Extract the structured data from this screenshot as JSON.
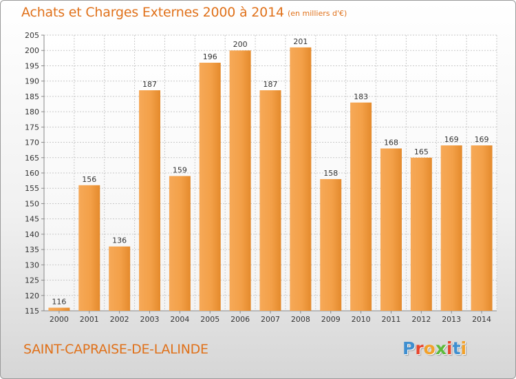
{
  "header": {
    "title": "Achats et Charges Externes 2000 à 2014",
    "unit_note": "(en milliers d'€)"
  },
  "footer": {
    "location": "SAINT-CAPRAISE-DE-LALINDE",
    "logo": {
      "letters": [
        "P",
        "r",
        "o",
        "x",
        "i",
        "t",
        "i"
      ],
      "colors": [
        "#3f8fd0",
        "#e8452c",
        "#f2a12a",
        "#5dbb3a",
        "#e8452c",
        "#3f8fd0",
        "#f2a12a"
      ]
    }
  },
  "colors": {
    "bar_light": "#f6a958",
    "bar_dark": "#e48a2c",
    "accent": "#e0711a",
    "grid": "#c8c8c8",
    "axis_text": "#333333"
  },
  "chart_data": {
    "type": "bar",
    "categories": [
      "2000",
      "2001",
      "2002",
      "2003",
      "2004",
      "2005",
      "2006",
      "2007",
      "2008",
      "2009",
      "2010",
      "2011",
      "2012",
      "2013",
      "2014"
    ],
    "values": [
      116,
      156,
      136,
      187,
      159,
      196,
      200,
      187,
      201,
      158,
      183,
      168,
      165,
      169,
      169
    ],
    "data_labels": [
      "116",
      "156",
      "136",
      "187",
      "159",
      "196",
      "200",
      "187",
      "201",
      "158",
      "183",
      "168",
      "165",
      "169",
      "169"
    ],
    "yticks": [
      115,
      120,
      125,
      130,
      135,
      140,
      145,
      150,
      155,
      160,
      165,
      170,
      175,
      180,
      185,
      190,
      195,
      200,
      205
    ],
    "ylim": [
      115,
      205
    ],
    "title": "Achats et Charges Externes 2000 à 2014",
    "xlabel": "",
    "ylabel": "",
    "grid": true,
    "legend": "none"
  }
}
